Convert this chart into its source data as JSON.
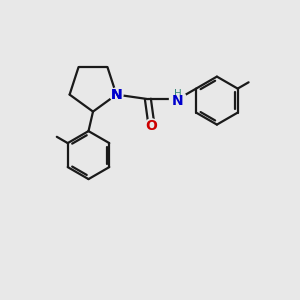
{
  "background_color": "#e8e8e8",
  "bond_color": "#1a1a1a",
  "N_color": "#0000cc",
  "O_color": "#cc0000",
  "H_color": "#3a8a7a",
  "line_width": 1.6,
  "figsize": [
    3.0,
    3.0
  ],
  "dpi": 100,
  "xlim": [
    0,
    10
  ],
  "ylim": [
    0,
    10
  ]
}
